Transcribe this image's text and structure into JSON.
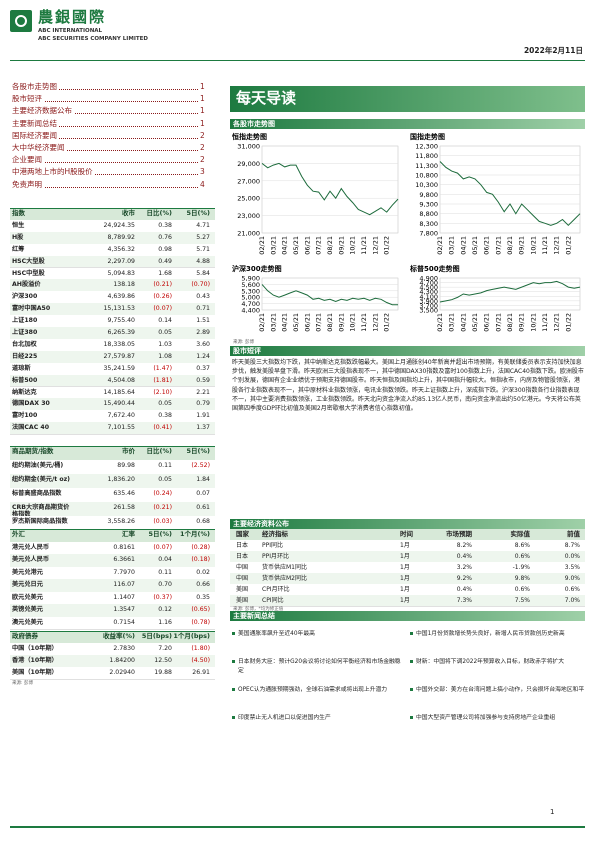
{
  "header": {
    "company_cn": "農銀國際",
    "company_en1": "ABC INTERNATIONAL",
    "company_en2": "ABC SECURITIES COMPANY LIMITED",
    "date": "2022年2月11日"
  },
  "toc": [
    {
      "title": "各股市走势图",
      "page": "1"
    },
    {
      "title": "股市短评",
      "page": "1"
    },
    {
      "title": "主要经济数据公布",
      "page": "1"
    },
    {
      "title": "主要新闻总结",
      "page": "1"
    },
    {
      "title": "国际经济要闻",
      "page": "2"
    },
    {
      "title": "大中华经济要闻",
      "page": "2"
    },
    {
      "title": "企业要闻",
      "page": "2"
    },
    {
      "title": "中港两地上市的H股股价",
      "page": "3"
    },
    {
      "title": "免责声明",
      "page": "4"
    }
  ],
  "banner": "每天导读",
  "charts_section": "各股市走势图",
  "chart_data": [
    {
      "type": "line",
      "title": "恒指走势图",
      "color": "#1d6b3c",
      "categories": [
        "02/21",
        null,
        "03/21",
        null,
        "04/21",
        null,
        "05/21",
        null,
        "06/21",
        null,
        "07/21",
        null,
        "08/21",
        null,
        "09/21",
        null,
        "10/21",
        null,
        "11/21",
        null,
        "12/21",
        null,
        "01/22",
        null,
        null
      ],
      "values": [
        29000,
        28500,
        28800,
        29000,
        28600,
        28800,
        28800,
        27500,
        26500,
        25800,
        25700,
        24800,
        25800,
        25000,
        26100,
        25200,
        24500,
        23700,
        23400,
        23100,
        23500,
        23900,
        23400,
        24200,
        24900
      ],
      "ylim": [
        21000,
        31000
      ],
      "yticks": [
        {
          "value": 21000,
          "label": "21,000"
        },
        {
          "value": 23000,
          "label": "23,000"
        },
        {
          "value": 25000,
          "label": "25,000"
        },
        {
          "value": 27000,
          "label": "27,000"
        },
        {
          "value": 29000,
          "label": "29,000"
        },
        {
          "value": 31000,
          "label": "31,000"
        }
      ]
    },
    {
      "type": "line",
      "title": "国指走势图",
      "color": "#1d6b3c",
      "categories": [
        "02/21",
        null,
        "03/21",
        null,
        "04/21",
        null,
        "05/21",
        null,
        "06/21",
        null,
        "07/21",
        null,
        "08/21",
        null,
        "09/21",
        null,
        "10/21",
        null,
        "11/21",
        null,
        "12/21",
        null,
        "01/22",
        null,
        null
      ],
      "values": [
        11500,
        11200,
        11000,
        10900,
        10600,
        10700,
        10600,
        10300,
        9900,
        9800,
        9400,
        8900,
        9300,
        8800,
        9300,
        9000,
        8700,
        8400,
        8300,
        8200,
        8300,
        8500,
        8200,
        8500,
        8800
      ],
      "ylim": [
        7800,
        12300
      ],
      "yticks": [
        {
          "value": 7800,
          "label": "7,800"
        },
        {
          "value": 8300,
          "label": "8,300"
        },
        {
          "value": 8800,
          "label": "8,800"
        },
        {
          "value": 9300,
          "label": "9,300"
        },
        {
          "value": 9800,
          "label": "9,800"
        },
        {
          "value": 10300,
          "label": "10,300"
        },
        {
          "value": 10800,
          "label": "10,800"
        },
        {
          "value": 11300,
          "label": "11,300"
        },
        {
          "value": 11800,
          "label": "11,800"
        },
        {
          "value": 12300,
          "label": "12,300"
        }
      ]
    },
    {
      "type": "line",
      "title": "沪深300走势图",
      "color": "#1d6b3c",
      "categories": [
        "02/21",
        null,
        "03/21",
        null,
        "04/21",
        null,
        "05/21",
        null,
        "06/21",
        null,
        "07/21",
        null,
        "08/21",
        null,
        "09/21",
        null,
        "10/21",
        null,
        "11/21",
        null,
        "12/21",
        null,
        "01/22",
        null,
        null
      ],
      "values": [
        5600,
        5300,
        5100,
        5000,
        5100,
        5200,
        5300,
        5200,
        5100,
        4900,
        4950,
        4850,
        4900,
        4800,
        4900,
        4850,
        4950,
        4900,
        4950,
        4850,
        4950,
        4900,
        4750,
        4650,
        4650
      ],
      "ylim": [
        4400,
        5900
      ],
      "yticks": [
        {
          "value": 4400,
          "label": "4,400"
        },
        {
          "value": 4700,
          "label": "4,700"
        },
        {
          "value": 5000,
          "label": "5,000"
        },
        {
          "value": 5300,
          "label": "5,300"
        },
        {
          "value": 5600,
          "label": "5,600"
        },
        {
          "value": 5900,
          "label": "5,900"
        }
      ]
    },
    {
      "type": "line",
      "title": "标普500走势图",
      "color": "#1d6b3c",
      "categories": [
        "02/21",
        null,
        "03/21",
        null,
        "04/21",
        null,
        "05/21",
        null,
        "06/21",
        null,
        "07/21",
        null,
        "08/21",
        null,
        "09/21",
        null,
        "10/21",
        null,
        "11/21",
        null,
        "12/21",
        null,
        "01/22",
        null,
        null
      ],
      "values": [
        3850,
        3900,
        3950,
        4050,
        4200,
        4150,
        4200,
        4250,
        4350,
        4400,
        4450,
        4500,
        4450,
        4400,
        4500,
        4600,
        4700,
        4650,
        4700,
        4700,
        4750,
        4650,
        4500,
        4450,
        4500
      ],
      "ylim": [
        3500,
        4900
      ],
      "yticks": [
        {
          "value": 3500,
          "label": "3,500"
        },
        {
          "value": 3700,
          "label": "3,700"
        },
        {
          "value": 3900,
          "label": "3,900"
        },
        {
          "value": 4100,
          "label": "4,100"
        },
        {
          "value": 4300,
          "label": "4,300"
        },
        {
          "value": 4500,
          "label": "4,500"
        },
        {
          "value": 4700,
          "label": "4,700"
        },
        {
          "value": 4900,
          "label": "4,900"
        }
      ]
    }
  ],
  "chart_source": "来源: 彭博",
  "commentary": {
    "heading": "股市短评",
    "text": "昨天美股三大指数均下跌，其中纳斯达克指数跌幅最大。美国上月通胀创40年新高并超出市场预期，有美联储委员表示支持加快加息步伐，触发美股早盘下滑。昨天欧洲三大股指表现不一，其中德国DAX30指数及富时100指数上升，法国CAC40指数下跌。欧洲股市个别发展，德国有企业业绩优于预期支持德国股市。昨天恒指及国指均上升，其中国指升幅较大。恒指收市，内房及物管股领涨，港股各行业指数表现不一，其中原材料业指数领涨，电讯业指数领跌。昨天上证指数上升，深成指下跌。沪深300指数各行业指数表现不一，其中主要消费指数领涨，工业指数领跌。昨天北向资金净流入约85.13亿人民币，南向资金净流出约50亿港元。今天将公布英国第四季度GDP环比初值及美国2月密歇根大学消费者信心指数初值。"
  },
  "indices": {
    "header": [
      "指数",
      "收市",
      "日比(%)",
      "5日(%)"
    ],
    "rows": [
      [
        "恒生",
        "24,924.35",
        "0.38",
        "4.71"
      ],
      [
        "H股",
        "8,789.92",
        "0.76",
        "5.27"
      ],
      [
        "红筹",
        "4,356.32",
        "0.98",
        "5.71"
      ],
      [
        "HSC大型股",
        "2,297.09",
        "0.49",
        "4.88"
      ],
      [
        "HSC中型股",
        "5,094.83",
        "1.68",
        "5.84"
      ],
      [
        "AH股溢价",
        "138.18",
        "(0.21)",
        "(0.70)"
      ],
      [
        "沪深300",
        "4,639.86",
        "(0.26)",
        "0.43"
      ],
      [
        "富时中国A50",
        "15,131.53",
        "(0.07)",
        "0.71"
      ],
      [
        "上证180",
        "9,755.40",
        "0.14",
        "1.51"
      ],
      [
        "上证380",
        "6,265.39",
        "0.05",
        "2.89"
      ],
      [
        "台北加权",
        "18,338.05",
        "1.03",
        "3.60"
      ],
      [
        "日经225",
        "27,579.87",
        "1.08",
        "1.24"
      ],
      [
        "道琼斯",
        "35,241.59",
        "(1.47)",
        "0.37"
      ],
      [
        "标普500",
        "4,504.08",
        "(1.81)",
        "0.59"
      ],
      [
        "纳斯达克",
        "14,185.64",
        "(2.10)",
        "2.21"
      ],
      [
        "德国DAX 30",
        "15,490.44",
        "0.05",
        "0.79"
      ],
      [
        "富时100",
        "7,672.40",
        "0.38",
        "1.91"
      ],
      [
        "法国CAC 40",
        "7,101.55",
        "(0.41)",
        "1.37"
      ]
    ]
  },
  "commodities": {
    "header": [
      "商品期货/指数",
      "市价",
      "日比(%)",
      "5日(%)"
    ],
    "rows": [
      [
        "纽约期油(美元/桶)",
        "89.98",
        "0.11",
        "(2.52)"
      ],
      [
        "纽约期金(美元/t oz)",
        "1,836.20",
        "0.05",
        "1.84"
      ],
      [
        "标普高盛商品指数",
        "635.46",
        "(0.24)",
        "0.07"
      ],
      [
        "CRB大宗商品期货价格指数",
        "261.58",
        "(0.21)",
        "0.61"
      ],
      [
        "罗杰斯国际商品指数",
        "3,558.26",
        "(0.03)",
        "0.68"
      ]
    ]
  },
  "fx": {
    "header": [
      "外汇",
      "汇率",
      "5日(%)",
      "1个月(%)"
    ],
    "rows": [
      [
        "港元兑人民币",
        "0.8161",
        "(0.07)",
        "(0.28)"
      ],
      [
        "美元兑人民币",
        "6.3661",
        "0.04",
        "(0.18)"
      ],
      [
        "美元兑港元",
        "7.7970",
        "0.11",
        "0.02"
      ],
      [
        "美元兑日元",
        "116.07",
        "0.70",
        "0.66"
      ],
      [
        "欧元兑美元",
        "1.1407",
        "(0.37)",
        "0.35"
      ],
      [
        "英镑兑美元",
        "1.3547",
        "0.12",
        "(0.65)"
      ],
      [
        "澳元兑美元",
        "0.7154",
        "1.16",
        "(0.78)"
      ]
    ]
  },
  "bonds": {
    "header": [
      "政府债券",
      "收益率(%)",
      "5日(bps)",
      "1个月(bps)"
    ],
    "rows": [
      [
        "中国（10年期）",
        "2.7830",
        "7.20",
        "(1.80)"
      ],
      [
        "香港（10年期）",
        "1.84200",
        "12.50",
        "(4.50)"
      ],
      [
        "美国（10年期）",
        "2.02940",
        "19.88",
        "26.91"
      ]
    ]
  },
  "market_source": "来源: 彭博",
  "econ": {
    "heading": "主要经济资料公布",
    "header": [
      "国家",
      "经济指标",
      "时间",
      "市场预期",
      "实际值",
      "前值"
    ],
    "rows": [
      [
        "日本",
        "PPI同比",
        "1月",
        "8.2%",
        "8.6%",
        "8.7%"
      ],
      [
        "日本",
        "PPI月环比",
        "1月",
        "0.4%",
        "0.6%",
        "0.0%"
      ],
      [
        "中国",
        "货币供应M1同比",
        "1月",
        "3.2%",
        "-1.9%",
        "3.5%"
      ],
      [
        "中国",
        "货币供应M2同比",
        "1月",
        "9.2%",
        "9.8%",
        "9.0%"
      ],
      [
        "美国",
        "CPI月环比",
        "1月",
        "0.4%",
        "0.6%",
        "0.6%"
      ],
      [
        "美国",
        "CPI同比",
        "1月",
        "7.3%",
        "7.5%",
        "7.0%"
      ]
    ],
    "source": "来源: 彭博，*均为修正值"
  },
  "news": {
    "heading": "主要新闻总结",
    "left": [
      "美国通胀率飙升至近40年最高",
      "日本财务大臣：预计G20会议将讨论如何平衡经济和市场金融稳定",
      "OPEC认为通胀预期强劲，全球石油需求或将出现上升潜力",
      "印度禁止无人机进口以促进国内生产"
    ],
    "right": [
      "中国1月份贷款增长势头良好，新增人民币贷款创历史新高",
      "财新：中国将下调2022年预算收入目标，财政赤字将扩大",
      "中国外交部：美方在台湾问题上搞小动作，只会损坏台海地区和平",
      "中国大型资产管理公司将加强参与支持房地产企业重组"
    ]
  },
  "page_number": "1"
}
